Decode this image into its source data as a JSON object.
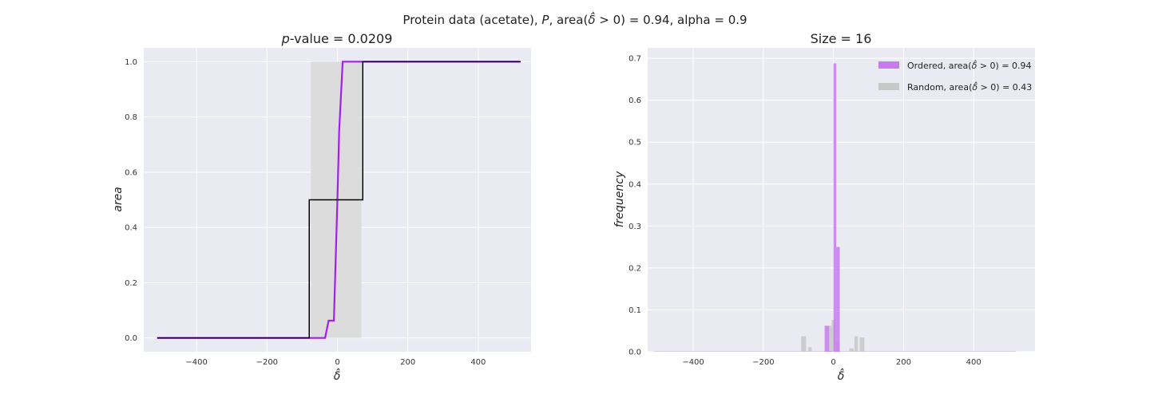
{
  "figure": {
    "suptitle": "Protein data (acetate), P, area(δ̂ > 0) = 0.94, alpha = 0.9",
    "suptitle_parts": [
      "Protein data (acetate), ",
      "P",
      ", area(",
      "δ̂",
      " > 0) = 0.94, alpha = 0.9"
    ]
  },
  "chart_data": [
    {
      "type": "line",
      "title": "p-value = 0.0209",
      "title_parts": [
        "p",
        "-value = 0.0209"
      ],
      "xlabel": "δ̂",
      "ylabel": "area",
      "xlim": [
        -550,
        550
      ],
      "ylim": [
        -0.05,
        1.05
      ],
      "xticks": [
        -400,
        -200,
        0,
        200,
        400
      ],
      "xtick_labels": [
        "−400",
        "−200",
        "0",
        "200",
        "400"
      ],
      "yticks": [
        0.0,
        0.2,
        0.4,
        0.6,
        0.8,
        1.0
      ],
      "ytick_labels": [
        "0.0",
        "0.2",
        "0.4",
        "0.6",
        "0.8",
        "1.0"
      ],
      "grid": true,
      "band": {
        "color": "#dcdcdc",
        "x": [
          -75,
          -75,
          68,
          68
        ],
        "lower": [
          0.0,
          0.0,
          0.0,
          0.0
        ],
        "upper": [
          1.0,
          1.0,
          1.0,
          1.0
        ]
      },
      "series": [
        {
          "color": "#000000",
          "x": [
            -512,
            -80,
            -80,
            72,
            72,
            520
          ],
          "y": [
            0,
            0,
            0.5,
            0.5,
            1.0,
            1.0
          ]
        },
        {
          "color": "#a020f0",
          "x": [
            -512,
            -35,
            -25,
            -10,
            -10,
            0,
            5,
            15,
            30,
            520
          ],
          "y": [
            0,
            0,
            0.0625,
            0.0625,
            0.0625,
            0.5,
            0.75,
            1.0,
            1.0,
            1.0
          ]
        }
      ]
    },
    {
      "type": "histogram",
      "title": "Size = 16",
      "xlabel": "δ̂",
      "ylabel": "frequency",
      "xlim": [
        -530,
        575
      ],
      "ylim": [
        0,
        0.725
      ],
      "xticks": [
        -400,
        -200,
        0,
        200,
        400
      ],
      "xtick_labels": [
        "−400",
        "−200",
        "0",
        "200",
        "400"
      ],
      "yticks": [
        0.0,
        0.1,
        0.2,
        0.3,
        0.4,
        0.5,
        0.6,
        0.7
      ],
      "ytick_labels": [
        "0.0",
        "0.1",
        "0.2",
        "0.3",
        "0.4",
        "0.5",
        "0.6",
        "0.7"
      ],
      "grid": true,
      "legend_position": "top-right",
      "series": [
        {
          "name": "Ordered, area(δ̂ > 0) = 0.94",
          "name_parts": [
            "Ordered, area(",
            "δ̂",
            " > 0) = 0.94"
          ],
          "color": "#c77bef",
          "x_start": [
            -25,
            -12,
            0,
            0,
            8
          ],
          "x_end": [
            -12,
            -5,
            8,
            8,
            18
          ],
          "values": [
            0.062,
            0.002,
            0.688,
            0.0,
            0.25
          ]
        },
        {
          "name": "Random, area(δ̂ > 0) = 0.43",
          "name_parts": [
            "Random, area(",
            "δ̂",
            " > 0) = 0.43"
          ],
          "color": "#c8c8c8",
          "x_start": [
            -92,
            -72,
            -12,
            -5,
            8,
            45,
            60,
            75
          ],
          "x_end": [
            -78,
            -62,
            -5,
            5,
            18,
            58,
            70,
            88
          ],
          "values": [
            0.037,
            0.011,
            0.062,
            0.076,
            0.024,
            0.008,
            0.037,
            0.034
          ]
        }
      ]
    }
  ]
}
